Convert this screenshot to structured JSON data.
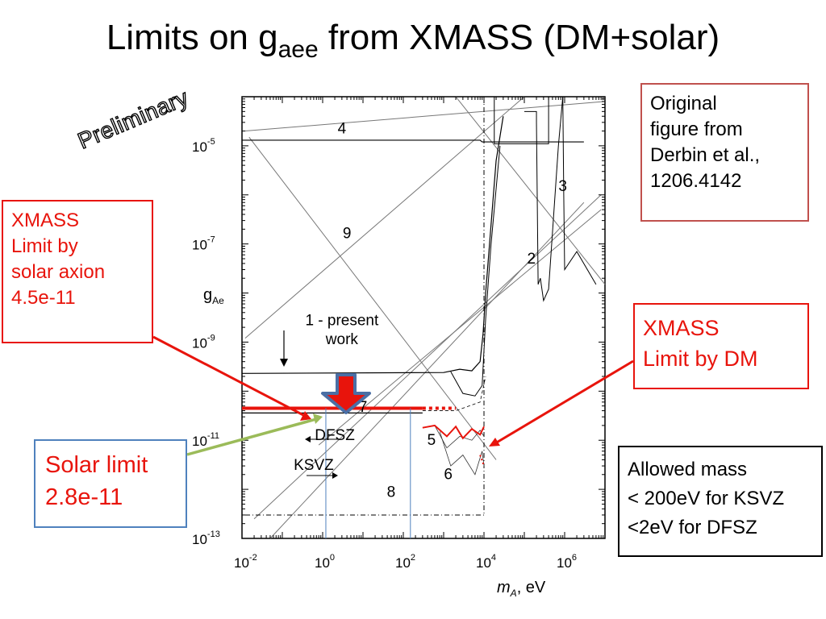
{
  "slide": {
    "title_main": "Limits on g",
    "title_sub": "aee",
    "title_rest": " from XMASS (DM+solar)",
    "preliminary": "Preliminary"
  },
  "boxes": {
    "original": [
      "Original",
      "figure from",
      "Derbin et al.,",
      "1206.4142"
    ],
    "xmass_solar": [
      "XMASS",
      "Limit by",
      "solar axion",
      "4.5e-11"
    ],
    "xmass_dm": [
      "XMASS",
      "Limit by DM"
    ],
    "solar_limit": [
      "Solar limit",
      "2.8e-11"
    ],
    "allowed": [
      "Allowed mass",
      "< 200eV for KSVZ",
      "<2eV for DFSZ"
    ]
  },
  "colors": {
    "red": "#e8140c",
    "green": "#9bbb59",
    "blue": "#4f81bd",
    "arrow_blue": "#4a6fa5",
    "box_brown": "#c0504d"
  },
  "chart_data": {
    "type": "line",
    "x_log": true,
    "y_log": true,
    "xlim": [
      0.01,
      10000000
    ],
    "ylim": [
      1e-13,
      0.0001
    ],
    "xlabel_main": "m",
    "xlabel_sub": "A",
    "xlabel_rest": ", eV",
    "ylabel_main": "g",
    "ylabel_sub": "Ae",
    "x_ticks": [
      {
        "value": 0.01,
        "base": "10",
        "exp": "-2"
      },
      {
        "value": 1,
        "base": "10",
        "exp": "0"
      },
      {
        "value": 100,
        "base": "10",
        "exp": "2"
      },
      {
        "value": 10000,
        "base": "10",
        "exp": "4"
      },
      {
        "value": 1000000,
        "base": "10",
        "exp": "6"
      }
    ],
    "y_ticks": [
      {
        "value": 1e-13,
        "base": "10",
        "exp": "-13"
      },
      {
        "value": 1e-11,
        "base": "10",
        "exp": "-11"
      },
      {
        "value": 1e-09,
        "base": "10",
        "exp": "-9"
      },
      {
        "value": 1e-07,
        "base": "10",
        "exp": "-7"
      },
      {
        "value": 1e-05,
        "base": "10",
        "exp": "-5"
      }
    ],
    "series": [
      {
        "id": "curve4",
        "color": "#000",
        "width": 1.2,
        "points": [
          [
            0.01,
            1.3e-05
          ],
          [
            8000,
            1.3e-05
          ],
          [
            9000,
            1.2e-05
          ],
          [
            3000000,
            1.2e-05
          ]
        ]
      },
      {
        "id": "curve1",
        "color": "#000",
        "width": 1.2,
        "points": [
          [
            0.01,
            2.3e-10
          ],
          [
            1000,
            2.4e-10
          ],
          [
            2500,
            2.8e-10
          ],
          [
            5000,
            2.6e-10
          ],
          [
            8000,
            4e-10
          ],
          [
            9500,
            1.5e-09
          ],
          [
            11000,
            1e-08
          ],
          [
            20000,
            5e-06
          ],
          [
            30000,
            4e-05
          ]
        ]
      },
      {
        "id": "curve1b",
        "color": "#000",
        "width": 1.0,
        "points": [
          [
            1500,
            2.5e-10
          ],
          [
            3000,
            9e-11
          ],
          [
            6000,
            8e-11
          ],
          [
            9000,
            1.3e-10
          ],
          [
            11000,
            3e-09
          ],
          [
            15000,
            1e-07
          ],
          [
            25000,
            1e-05
          ]
        ]
      },
      {
        "id": "curve2",
        "color": "#000",
        "width": 1.0,
        "points": [
          [
            100000,
            5e-05
          ],
          [
            200000,
            5e-05
          ],
          [
            200000,
            3e-05
          ],
          [
            220000,
            1.5e-08
          ],
          [
            250000,
            2e-08
          ],
          [
            300000,
            7e-09
          ],
          [
            400000,
            1.2e-08
          ],
          [
            700000,
            1e-05
          ],
          [
            900000,
            0.0001
          ]
        ]
      },
      {
        "id": "curve3",
        "color": "#000",
        "width": 1.0,
        "points": [
          [
            900000,
            0.0001
          ],
          [
            950000,
            1e-06
          ],
          [
            1000000,
            3e-08
          ],
          [
            2000000,
            7e-08
          ],
          [
            6000000,
            1.5e-08
          ]
        ]
      },
      {
        "id": "box_top",
        "color": "#000",
        "width": 1.0,
        "points": [
          [
            18000,
            0.0001
          ],
          [
            18000,
            1.1e-05
          ],
          [
            400000,
            1.1e-05
          ],
          [
            400000,
            0.0001
          ]
        ]
      },
      {
        "id": "dashdot_vert",
        "color": "#000",
        "width": 1.0,
        "dash": "6 3 1 3",
        "points": [
          [
            10000,
            0.0001
          ],
          [
            10000,
            3e-13
          ]
        ]
      },
      {
        "id": "dashdot_horiz",
        "color": "#000",
        "width": 1.0,
        "dash": "6 3 1 3",
        "points": [
          [
            0.012,
            3e-13
          ],
          [
            10000,
            3e-13
          ]
        ]
      },
      {
        "id": "dashdot_curve",
        "color": "#000",
        "width": 0.8,
        "dash": "4 3",
        "points": [
          [
            300,
            4e-11
          ],
          [
            2000,
            4e-11
          ],
          [
            8000,
            6e-11
          ],
          [
            11000,
            2e-10
          ]
        ]
      },
      {
        "id": "curve7",
        "color": "#000",
        "width": 1.2,
        "points": [
          [
            0.01,
            3.6e-11
          ],
          [
            300,
            3.6e-11
          ]
        ]
      },
      {
        "id": "curve5",
        "color": "#333",
        "width": 0.8,
        "points": [
          [
            600,
            2e-11
          ],
          [
            1200,
            7e-12
          ],
          [
            2500,
            1.2e-11
          ],
          [
            5000,
            1e-11
          ],
          [
            8000,
            1.6e-11
          ],
          [
            10000,
            1.2e-11
          ]
        ]
      },
      {
        "id": "curve6",
        "color": "#333",
        "width": 0.8,
        "points": [
          [
            800,
            1.5e-11
          ],
          [
            1500,
            3e-12
          ],
          [
            3000,
            5e-12
          ],
          [
            6000,
            2e-12
          ],
          [
            9000,
            6e-12
          ],
          [
            10000,
            3e-12
          ]
        ]
      },
      {
        "id": "xmass_dm",
        "color": "#e8140c",
        "width": 2.0,
        "points": [
          [
            300,
            1.8e-11
          ],
          [
            600,
            2e-11
          ],
          [
            1200,
            1.2e-11
          ],
          [
            2000,
            1.9e-11
          ],
          [
            3000,
            1.1e-11
          ],
          [
            5000,
            1.7e-11
          ],
          [
            8000,
            1.3e-11
          ],
          [
            10000,
            1.9e-11
          ]
        ]
      },
      {
        "id": "xmass_dm_dot",
        "color": "#e8140c",
        "width": 2.0,
        "dash": "2 3",
        "points": [
          [
            8000,
            5e-12
          ],
          [
            10000,
            3e-12
          ]
        ]
      },
      {
        "id": "solar_line",
        "color": "#e8140c",
        "width": 4.0,
        "points": [
          [
            0.01,
            4.5e-11
          ],
          [
            300,
            4.5e-11
          ]
        ]
      },
      {
        "id": "solar_dots",
        "color": "#e8140c",
        "width": 4.0,
        "dash": "4 4",
        "points": [
          [
            300,
            4.5e-11
          ],
          [
            2000,
            4.5e-11
          ]
        ]
      },
      {
        "id": "blue_v1",
        "color": "#4f81bd",
        "width": 1.0,
        "points": [
          [
            1.2,
            4.5e-11
          ],
          [
            1.2,
            1e-13
          ]
        ]
      },
      {
        "id": "blue_v2",
        "color": "#4f81bd",
        "width": 1.0,
        "points": [
          [
            150,
            4.5e-11
          ],
          [
            150,
            1e-13
          ]
        ]
      }
    ],
    "diagonals": [
      {
        "id": "diag9",
        "points": [
          [
            0.015,
            1.5e-05
          ],
          [
            20000,
            4e-12
          ]
        ]
      },
      {
        "id": "diagA",
        "points": [
          [
            0.012,
            1.2e-09
          ],
          [
            100000,
            0.0001
          ]
        ]
      },
      {
        "id": "diagB",
        "points": [
          [
            0.05,
            1e-13
          ],
          [
            3000000,
            7e-07
          ]
        ]
      },
      {
        "id": "diagC",
        "points": [
          [
            0.02,
            2.5e-13
          ],
          [
            8000000,
            1e-06
          ]
        ]
      },
      {
        "id": "diagD",
        "points": [
          [
            0.8,
            8e-12
          ],
          [
            8000000,
            5e-07
          ]
        ]
      },
      {
        "id": "diagE",
        "points": [
          [
            0.012,
            2e-05
          ],
          [
            10000000,
            8e-05
          ]
        ]
      },
      {
        "id": "diagF",
        "points": [
          [
            2000,
            0.00011
          ],
          [
            10000000,
            1.5e-08
          ]
        ]
      }
    ],
    "annotations": [
      {
        "text": "4",
        "x": 3,
        "y": 1.8e-05
      },
      {
        "text": "9",
        "x": 4,
        "y": 1.3e-07
      },
      {
        "text": "1 - present",
        "x": 3,
        "y": 2.2e-09
      },
      {
        "text": "work",
        "x": 3,
        "y": 9e-10
      },
      {
        "text": "7",
        "x": 10,
        "y": 3.8e-11
      },
      {
        "text": "DFSZ",
        "x": 2,
        "y": 1e-11
      },
      {
        "text": "KSVZ",
        "x": 0.6,
        "y": 2.5e-12
      },
      {
        "text": "8",
        "x": 50,
        "y": 7e-13
      },
      {
        "text": "5",
        "x": 500,
        "y": 8e-12
      },
      {
        "text": "6",
        "x": 1300,
        "y": 1.6e-12
      },
      {
        "text": "2",
        "x": 150000,
        "y": 4e-08
      },
      {
        "text": "3",
        "x": 900000,
        "y": 1.2e-06
      }
    ]
  }
}
